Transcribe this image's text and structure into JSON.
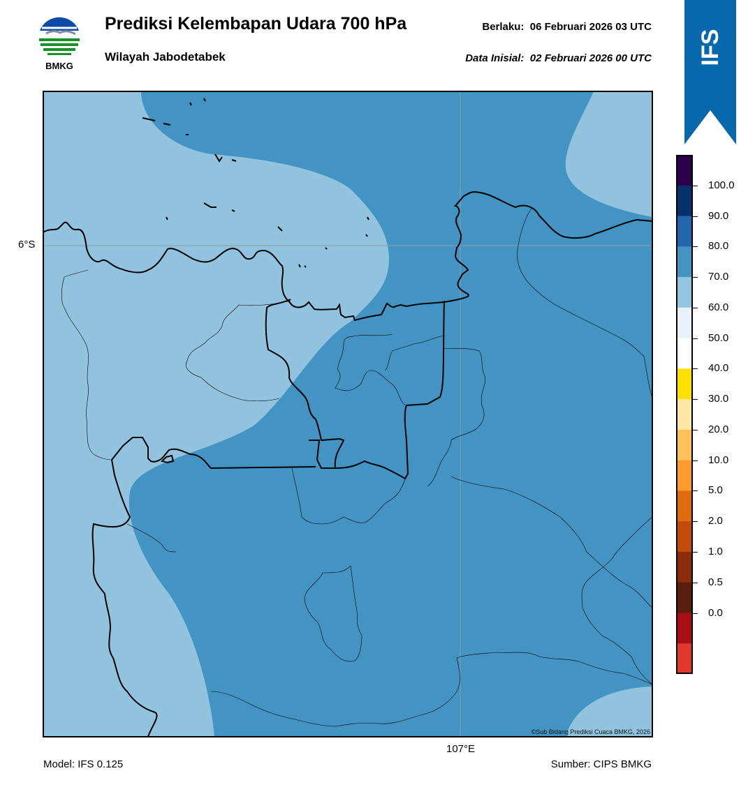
{
  "header": {
    "logo_text": "BMKG",
    "title": "Prediksi Kelembapan Udara 700 hPa",
    "subtitle": "Wilayah Jabodetabek",
    "valid_label": "Berlaku:",
    "valid_value": "06 Februari 2026 03 UTC",
    "init_label": "Data Inisial:",
    "init_value": "02 Februari 2026 00 UTC"
  },
  "ribbon": {
    "text": "IFS",
    "color": "#0868ac"
  },
  "map": {
    "lat_label": "6°S",
    "lon_label": "107°E",
    "credit": "©Sub Bidang Prediksi Cuaca BMKG, 2026",
    "fill_colors": {
      "light": "#92c3de",
      "mid": "#4393c3"
    },
    "regions": [
      {
        "name": "humidity-60-70",
        "value_range": "60-70"
      },
      {
        "name": "humidity-70-80",
        "value_range": "70-80"
      }
    ]
  },
  "colorbar": {
    "labels": [
      "100.0",
      "90.0",
      "80.0",
      "70.0",
      "60.0",
      "50.0",
      "40.0",
      "30.0",
      "20.0",
      "10.0",
      "5.0",
      "2.0",
      "1.0",
      "0.5",
      "0.0"
    ],
    "colors": [
      "#2d004b",
      "#08306b",
      "#2166ac",
      "#4393c3",
      "#92c5de",
      "#e8f1f8",
      "#ffffff",
      "#ffe100",
      "#ffe8a6",
      "#ffc35a",
      "#fe9a2e",
      "#e06c10",
      "#c24c0a",
      "#8a2d08",
      "#5a1e0c",
      "#a50f15",
      "#e0382a"
    ]
  },
  "footer": {
    "model": "Model: IFS 0.125",
    "source": "Sumber: CIPS BMKG"
  }
}
